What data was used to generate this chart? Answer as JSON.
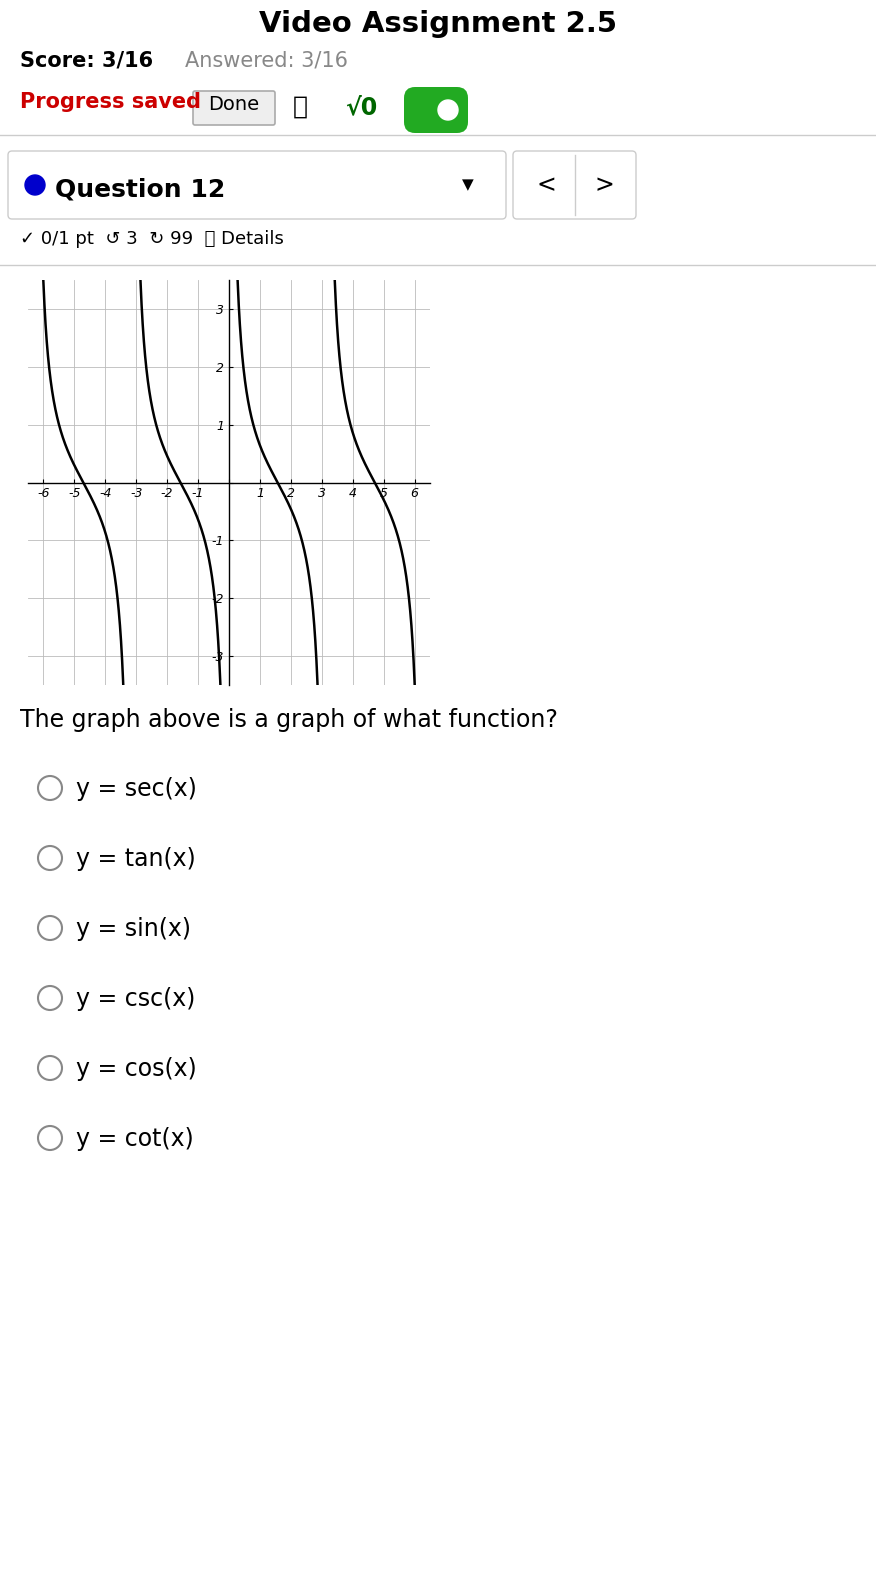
{
  "title_top": "Video Assignment 2.5",
  "score_text": "Score: 3/16",
  "answered_text": "Answered: 3/16",
  "progress_saved_text": "Progress saved",
  "done_button_text": "Done",
  "question_label": "Question 12",
  "pts_text": "0/1 pt",
  "question_text": "The graph above is a graph of what function?",
  "options": [
    "y = sec(x)",
    "y = tan(x)",
    "y = sin(x)",
    "y = csc(x)",
    "y = cos(x)",
    "y = cot(x)"
  ],
  "graph_xlim": [
    -6.5,
    6.5
  ],
  "graph_ylim": [
    -3.5,
    3.5
  ],
  "graph_xticks": [
    -6,
    -5,
    -4,
    -3,
    -2,
    -1,
    0,
    1,
    2,
    3,
    4,
    5,
    6
  ],
  "graph_yticks": [
    -3,
    -2,
    -1,
    0,
    1,
    2,
    3
  ],
  "function": "cot",
  "bg_color": "#ffffff",
  "graph_line_color": "#000000",
  "grid_color": "#bbbbbb",
  "axis_color": "#000000",
  "score_color": "#000000",
  "answered_color": "#888888",
  "progress_color": "#cc0000",
  "question_dot_color": "#0000cc",
  "option_circle_color": "#888888",
  "separator_color": "#cccccc",
  "done_btn_bg": "#eeeeee",
  "done_btn_border": "#cccccc",
  "toggle_color": "#22aa22",
  "sqrt_color": "#006600"
}
